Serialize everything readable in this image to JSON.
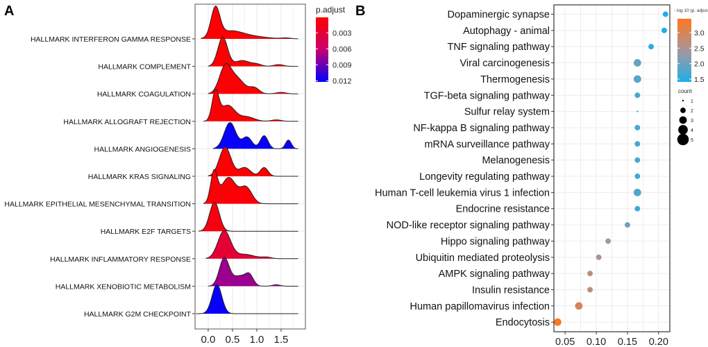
{
  "panels": {
    "a_label": "A",
    "b_label": "B"
  },
  "chart_data": [
    {
      "type": "area",
      "subtype": "ridgeline",
      "title": "",
      "xlim": [
        -0.27,
        2.0
      ],
      "xticks": [
        "0.0",
        "0.5",
        "1.0",
        "1.5"
      ],
      "xtick_values": [
        0,
        0.5,
        1.0,
        1.5
      ],
      "legend": {
        "title": "p.adjust",
        "placement": "right",
        "ticks": [
          "0.003",
          "0.006",
          "0.009",
          "0.012"
        ],
        "tick_values": [
          0.003,
          0.006,
          0.009,
          0.012
        ],
        "range": [
          0.0001,
          0.0122
        ],
        "low_color": "#ff0000",
        "high_color": "#0000ff"
      },
      "series": [
        {
          "name": "HALLMARK INTERFERON GAMMA RESPONSE",
          "p_adjust": 0.0003,
          "range": [
            -0.15,
            1.85
          ],
          "peaks": [
            [
              0.15,
              1.0,
              0.09
            ],
            [
              0.45,
              0.25,
              0.25
            ],
            [
              0.9,
              0.08,
              0.3
            ],
            [
              1.6,
              0.03,
              0.1
            ]
          ]
        },
        {
          "name": "HALLMARK COMPLEMENT",
          "p_adjust": 0.0003,
          "range": [
            0.0,
            1.85
          ],
          "peaks": [
            [
              0.3,
              1.0,
              0.1
            ],
            [
              0.7,
              0.2,
              0.15
            ],
            [
              1.0,
              0.07,
              0.1
            ],
            [
              1.45,
              0.06,
              0.1
            ]
          ]
        },
        {
          "name": "HALLMARK COAGULATION",
          "p_adjust": 0.0003,
          "range": [
            0.0,
            1.85
          ],
          "peaks": [
            [
              0.35,
              0.9,
              0.12
            ],
            [
              0.6,
              0.5,
              0.15
            ],
            [
              0.95,
              0.2,
              0.1
            ],
            [
              1.5,
              0.05,
              0.1
            ]
          ]
        },
        {
          "name": "HALLMARK ALLOGRAFT REJECTION",
          "p_adjust": 0.0003,
          "range": [
            -0.1,
            1.85
          ],
          "peaks": [
            [
              0.15,
              0.95,
              0.07
            ],
            [
              0.4,
              0.55,
              0.15
            ],
            [
              0.8,
              0.15,
              0.15
            ],
            [
              1.4,
              0.05,
              0.1
            ]
          ]
        },
        {
          "name": "HALLMARK ANGIOGENESIS",
          "p_adjust": 0.012,
          "range": [
            0.1,
            1.85
          ],
          "peaks": [
            [
              0.45,
              0.9,
              0.12
            ],
            [
              0.8,
              0.4,
              0.1
            ],
            [
              1.15,
              0.45,
              0.08
            ],
            [
              1.65,
              0.3,
              0.06
            ]
          ]
        },
        {
          "name": "HALLMARK KRAS SIGNALING",
          "p_adjust": 0.0003,
          "range": [
            0.0,
            1.85
          ],
          "peaks": [
            [
              0.35,
              1.0,
              0.12
            ],
            [
              0.75,
              0.3,
              0.12
            ],
            [
              1.15,
              0.3,
              0.08
            ]
          ]
        },
        {
          "name": "HALLMARK EPITHELIAL MESENCHYMAL TRANSITION",
          "p_adjust": 0.0005,
          "range": [
            -0.1,
            1.85
          ],
          "peaks": [
            [
              0.12,
              1.05,
              0.07
            ],
            [
              0.42,
              0.9,
              0.15
            ],
            [
              0.78,
              0.55,
              0.12
            ]
          ]
        },
        {
          "name": "HALLMARK E2F TARGETS",
          "p_adjust": 0.001,
          "range": [
            -0.2,
            1.85
          ],
          "peaks": [
            [
              0.13,
              1.0,
              0.1
            ]
          ]
        },
        {
          "name": "HALLMARK INFLAMMATORY RESPONSE",
          "p_adjust": 0.003,
          "range": [
            -0.05,
            1.85
          ],
          "peaks": [
            [
              0.33,
              0.95,
              0.13
            ],
            [
              0.75,
              0.15,
              0.2
            ],
            [
              1.2,
              0.05,
              0.1
            ]
          ]
        },
        {
          "name": "HALLMARK XENOBIOTIC METABOLISM",
          "p_adjust": 0.0075,
          "range": [
            0.0,
            1.85
          ],
          "peaks": [
            [
              0.33,
              0.95,
              0.1
            ],
            [
              0.65,
              0.35,
              0.15
            ],
            [
              0.85,
              0.3,
              0.08
            ],
            [
              1.4,
              0.05,
              0.08
            ]
          ]
        },
        {
          "name": "HALLMARK G2M CHECKPOINT",
          "p_adjust": 0.012,
          "range": [
            -0.25,
            1.85
          ],
          "peaks": [
            [
              0.18,
              1.0,
              0.1
            ]
          ]
        }
      ]
    },
    {
      "type": "scatter",
      "subtype": "dotplot",
      "title": "",
      "xlim": [
        0.032,
        0.218
      ],
      "xticks": [
        "0.05",
        "0.10",
        "0.15",
        "0.20"
      ],
      "xtick_values": [
        0.05,
        0.1,
        0.15,
        0.2
      ],
      "color_legend": {
        "title": "- log 10 (p. adjust)",
        "placement": "right",
        "ticks": [
          "3.0",
          "2.5",
          "2.0",
          "1.5"
        ],
        "tick_values": [
          3.0,
          2.5,
          2.0,
          1.5
        ],
        "range": [
          1.41,
          3.45
        ],
        "low_color": "#1eaee8",
        "mid_color": "#9a9aa6",
        "high_color": "#ff7620"
      },
      "size_legend": {
        "title": "count",
        "values": [
          "1",
          "2",
          "3",
          "4",
          "5"
        ]
      },
      "points": [
        {
          "term": "Dopaminergic synapse",
          "x": 0.211,
          "neglog10p": 1.42,
          "count": 2
        },
        {
          "term": "Autophagy - animal",
          "x": 0.209,
          "neglog10p": 1.42,
          "count": 2
        },
        {
          "term": "TNF signaling pathway",
          "x": 0.188,
          "neglog10p": 1.5,
          "count": 2
        },
        {
          "term": "Viral carcinogenesis",
          "x": 0.166,
          "neglog10p": 1.95,
          "count": 3
        },
        {
          "term": "Thermogenesis",
          "x": 0.166,
          "neglog10p": 1.8,
          "count": 3
        },
        {
          "term": "TGF-beta signaling pathway",
          "x": 0.166,
          "neglog10p": 1.7,
          "count": 2
        },
        {
          "term": "Sulfur relay system",
          "x": 0.166,
          "neglog10p": 1.7,
          "count": 1
        },
        {
          "term": "NF-kappa B signaling pathway",
          "x": 0.166,
          "neglog10p": 1.7,
          "count": 2
        },
        {
          "term": "mRNA surveillance pathway",
          "x": 0.166,
          "neglog10p": 1.7,
          "count": 2
        },
        {
          "term": "Melanogenesis",
          "x": 0.166,
          "neglog10p": 1.7,
          "count": 2
        },
        {
          "term": "Longevity regulating pathway",
          "x": 0.166,
          "neglog10p": 1.7,
          "count": 2
        },
        {
          "term": "Human T-cell leukemia virus 1 infection",
          "x": 0.166,
          "neglog10p": 1.75,
          "count": 3
        },
        {
          "term": "Endocrine resistance",
          "x": 0.166,
          "neglog10p": 1.65,
          "count": 2
        },
        {
          "term": "NOD-like receptor signaling pathway",
          "x": 0.15,
          "neglog10p": 2.05,
          "count": 2
        },
        {
          "term": "Hippo signaling pathway",
          "x": 0.119,
          "neglog10p": 2.4,
          "count": 2
        },
        {
          "term": "Ubiquitin mediated proteolysis",
          "x": 0.104,
          "neglog10p": 2.5,
          "count": 2
        },
        {
          "term": "AMPK signaling pathway",
          "x": 0.09,
          "neglog10p": 2.7,
          "count": 2
        },
        {
          "term": "Insulin resistance",
          "x": 0.09,
          "neglog10p": 2.7,
          "count": 2
        },
        {
          "term": "Human papillomavirus infection",
          "x": 0.072,
          "neglog10p": 3.0,
          "count": 3
        },
        {
          "term": "Endocytosis",
          "x": 0.038,
          "neglog10p": 3.4,
          "count": 3
        }
      ]
    }
  ]
}
